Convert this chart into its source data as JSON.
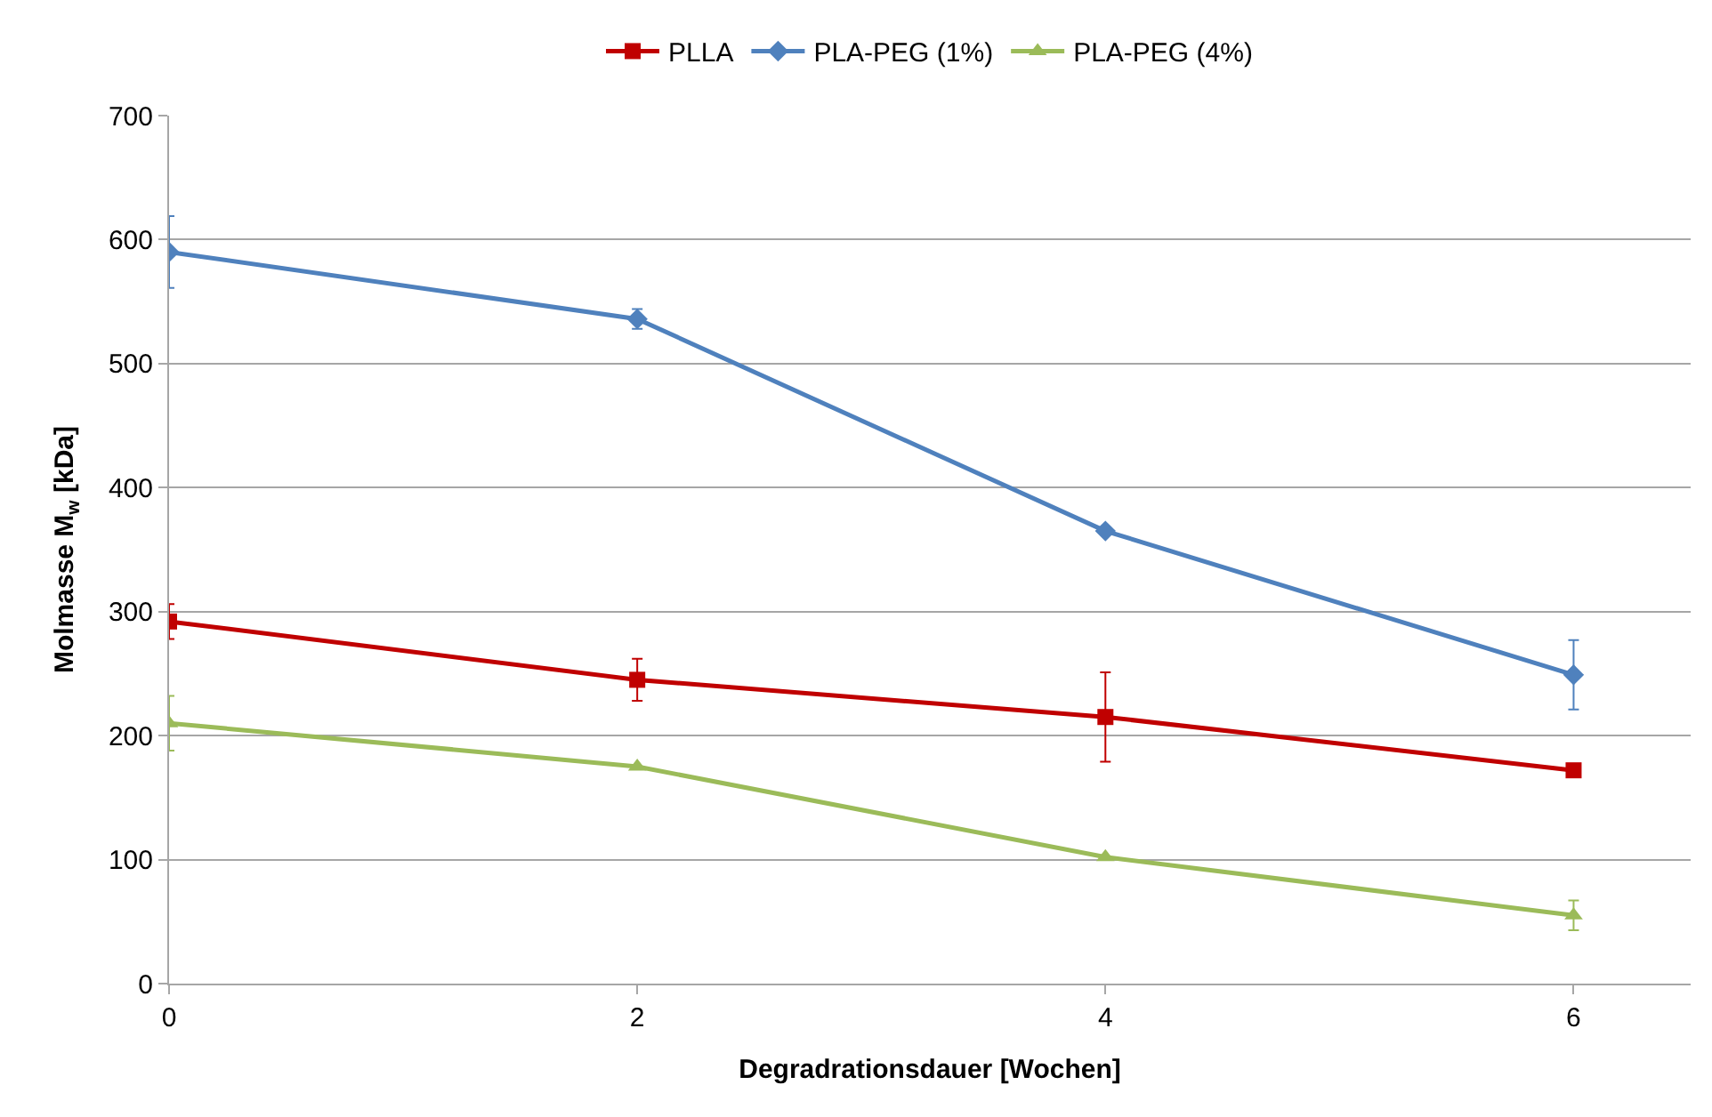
{
  "chart_data": {
    "type": "line",
    "xlabel": "Degradrationsdauer [Wochen]",
    "ylabel": "Molmasse M$_{w}$ [kDa]",
    "x": [
      0,
      2,
      4,
      6
    ],
    "xlim": [
      0,
      6.5
    ],
    "xticks": [
      0,
      2,
      4,
      6
    ],
    "ylim": [
      0,
      700
    ],
    "yticks": [
      0,
      100,
      200,
      300,
      400,
      500,
      600,
      700
    ],
    "grid": "y",
    "legend": "top",
    "series": [
      {
        "name": "PLLA",
        "color": "#c00000",
        "marker": "square",
        "values": [
          292,
          245,
          215,
          172
        ],
        "errors": [
          14,
          17,
          36,
          null
        ]
      },
      {
        "name": "PLA-PEG (1%)",
        "color": "#4f81bd",
        "marker": "diamond",
        "values": [
          590,
          536,
          365,
          249
        ],
        "errors": [
          29,
          8,
          null,
          28
        ]
      },
      {
        "name": "PLA-PEG (4%)",
        "color": "#9bbb59",
        "marker": "triangle",
        "values": [
          210,
          175,
          102,
          55
        ],
        "errors": [
          22,
          null,
          null,
          12
        ]
      }
    ]
  }
}
